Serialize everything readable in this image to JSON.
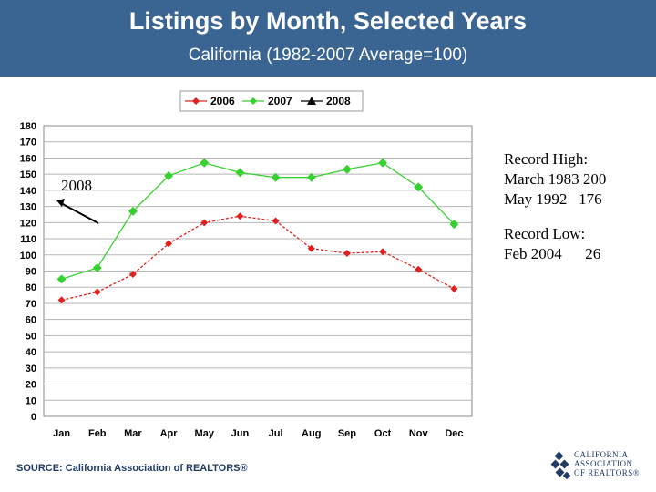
{
  "header": {
    "title": "Listings by Month, Selected Years",
    "subtitle": "California (1982-2007 Average=100)"
  },
  "chart_data": {
    "type": "line",
    "categories": [
      "Jan",
      "Feb",
      "Mar",
      "Apr",
      "May",
      "Jun",
      "Jul",
      "Aug",
      "Sep",
      "Oct",
      "Nov",
      "Dec"
    ],
    "series": [
      {
        "name": "2006",
        "color": "#e0201f",
        "marker": "diamond",
        "dashed": true,
        "values": [
          72,
          77,
          88,
          107,
          120,
          124,
          121,
          104,
          101,
          102,
          91,
          79
        ]
      },
      {
        "name": "2007",
        "color": "#35d12e",
        "marker": "diamond",
        "dashed": false,
        "values": [
          85,
          92,
          127,
          149,
          157,
          151,
          148,
          148,
          153,
          157,
          142,
          119
        ]
      },
      {
        "name": "2008",
        "color": "#000000",
        "marker": "triangle",
        "dashed": false,
        "values": [
          null,
          null,
          null,
          null,
          null,
          null,
          null,
          null,
          null,
          null,
          null,
          null
        ]
      }
    ],
    "ylim": [
      0,
      180
    ],
    "yticks": [
      0,
      10,
      20,
      30,
      40,
      50,
      60,
      70,
      80,
      90,
      100,
      110,
      120,
      130,
      140,
      150,
      160,
      170,
      180
    ],
    "grid": true,
    "legend_position": "top-center",
    "annotation_2008": "2008"
  },
  "notes": {
    "record_high_title": "Record High:",
    "record_high_1": "March 1983 200",
    "record_high_2": "May 1992   176",
    "record_low_title": "Record Low:",
    "record_low_1": "Feb 2004      26"
  },
  "footer": {
    "source": "SOURCE: California Association of REALTORS®",
    "logo_line1": "CALIFORNIA",
    "logo_line2": "ASSOCIATION",
    "logo_line3": "OF REALTORS®"
  }
}
